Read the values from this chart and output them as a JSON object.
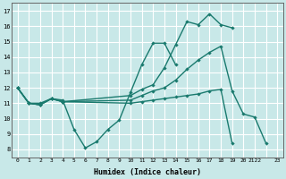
{
  "xlabel": "Humidex (Indice chaleur)",
  "bg_color": "#c8e8e8",
  "grid_color": "#ffffff",
  "line_color": "#1a7a6e",
  "xlim": [
    -0.5,
    23.5
  ],
  "ylim": [
    7.5,
    17.5
  ],
  "yticks": [
    8,
    9,
    10,
    11,
    12,
    13,
    14,
    15,
    16,
    17
  ],
  "xticks": [
    0,
    1,
    2,
    3,
    4,
    5,
    6,
    7,
    8,
    9,
    10,
    11,
    12,
    13,
    14,
    15,
    16,
    17,
    18,
    19,
    20,
    21,
    22,
    23
  ],
  "xtick_labels": [
    "0",
    "1",
    "2",
    "3",
    "4",
    "5",
    "6",
    "7",
    "8",
    "9",
    "10",
    "11",
    "12",
    "13",
    "14",
    "15",
    "16",
    "17",
    "18",
    "19",
    "20",
    "2122",
    "",
    "23"
  ],
  "lines": [
    {
      "x": [
        0,
        1,
        2,
        3,
        4,
        5,
        6,
        7,
        8,
        9,
        10,
        11,
        12,
        13,
        14
      ],
      "y": [
        12,
        11,
        11,
        11.3,
        11.2,
        9.3,
        8.1,
        8.5,
        9.3,
        9.9,
        11.7,
        13.5,
        14.9,
        14.9,
        13.5
      ]
    },
    {
      "x": [
        0,
        1,
        2,
        3,
        4,
        10,
        11,
        12,
        13,
        14,
        15,
        16,
        17,
        18,
        19
      ],
      "y": [
        12,
        11,
        10.9,
        11.3,
        11.1,
        11.5,
        11.9,
        12.2,
        13.3,
        14.8,
        16.3,
        16.1,
        16.8,
        16.1,
        15.9
      ]
    },
    {
      "x": [
        0,
        1,
        2,
        3,
        4,
        10,
        11,
        12,
        13,
        14,
        15,
        16,
        17,
        18,
        19,
        20,
        21,
        22
      ],
      "y": [
        12,
        11,
        10.9,
        11.3,
        11.1,
        11.2,
        11.5,
        11.8,
        12.0,
        12.5,
        13.2,
        13.8,
        14.3,
        14.7,
        11.8,
        10.3,
        10.1,
        8.4
      ]
    },
    {
      "x": [
        0,
        1,
        2,
        3,
        4,
        10,
        11,
        12,
        13,
        14,
        15,
        16,
        17,
        18,
        19
      ],
      "y": [
        12,
        11,
        10.9,
        11.3,
        11.1,
        11.0,
        11.1,
        11.2,
        11.3,
        11.4,
        11.5,
        11.6,
        11.8,
        11.9,
        8.4
      ]
    }
  ]
}
